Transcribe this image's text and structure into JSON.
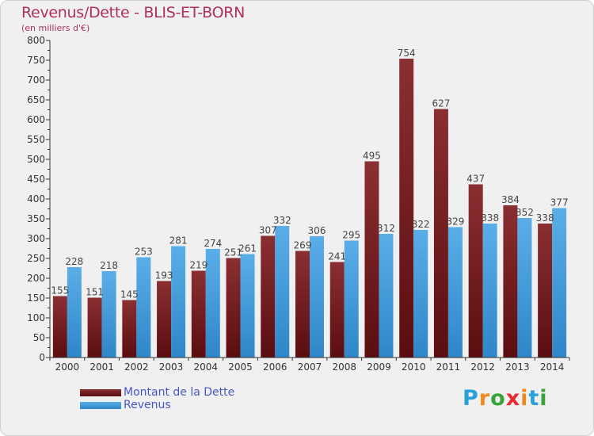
{
  "title": "Revenus/Dette - BLIS-ET-BORN",
  "subtitle": "(en milliers d'€)",
  "colors": {
    "title": "#b0305a",
    "dette": "#7a1f24",
    "revenus": "#3a96dc",
    "legend_text": "#4a55c8"
  },
  "legend": [
    {
      "label": "Montant de la Dette",
      "color": "#7a1f24"
    },
    {
      "label": "Revenus",
      "color": "#3a96dc"
    }
  ],
  "logo": {
    "text": "Proxiti",
    "letters": [
      "P",
      "r",
      "o",
      "x",
      "i",
      "t",
      "i"
    ],
    "colors": [
      "#2aa0d8",
      "#f08a1c",
      "#3aa43a",
      "#e8292e",
      "#f08a1c",
      "#2aa0d8",
      "#3aa43a"
    ]
  },
  "chart_data": {
    "type": "bar",
    "categories": [
      "2000",
      "2001",
      "2002",
      "2003",
      "2004",
      "2005",
      "2006",
      "2007",
      "2008",
      "2009",
      "2010",
      "2011",
      "2012",
      "2013",
      "2014"
    ],
    "series": [
      {
        "name": "Montant de la Dette",
        "values": [
          155,
          151,
          145,
          193,
          219,
          251,
          307,
          269,
          241,
          495,
          754,
          627,
          437,
          384,
          338
        ]
      },
      {
        "name": "Revenus",
        "values": [
          228,
          218,
          253,
          281,
          274,
          261,
          332,
          306,
          295,
          312,
          322,
          329,
          338,
          352,
          377
        ]
      }
    ],
    "value_labels": [
      [
        "155",
        "151",
        "145",
        "193",
        "219",
        "251",
        "307",
        "269",
        "241",
        "495",
        "754",
        "627",
        "437",
        "384",
        "338"
      ],
      [
        "228",
        "218",
        "253",
        "281",
        "274",
        "261",
        "332",
        "306",
        "295",
        "312",
        "322",
        "329",
        "338",
        "352",
        "377"
      ]
    ],
    "yticks": [
      "0",
      "50",
      "100",
      "150",
      "200",
      "250",
      "300",
      "350",
      "400",
      "450",
      "500",
      "550",
      "600",
      "650",
      "700",
      "750",
      "800"
    ],
    "ylim": [
      0,
      800
    ],
    "grid": false
  }
}
